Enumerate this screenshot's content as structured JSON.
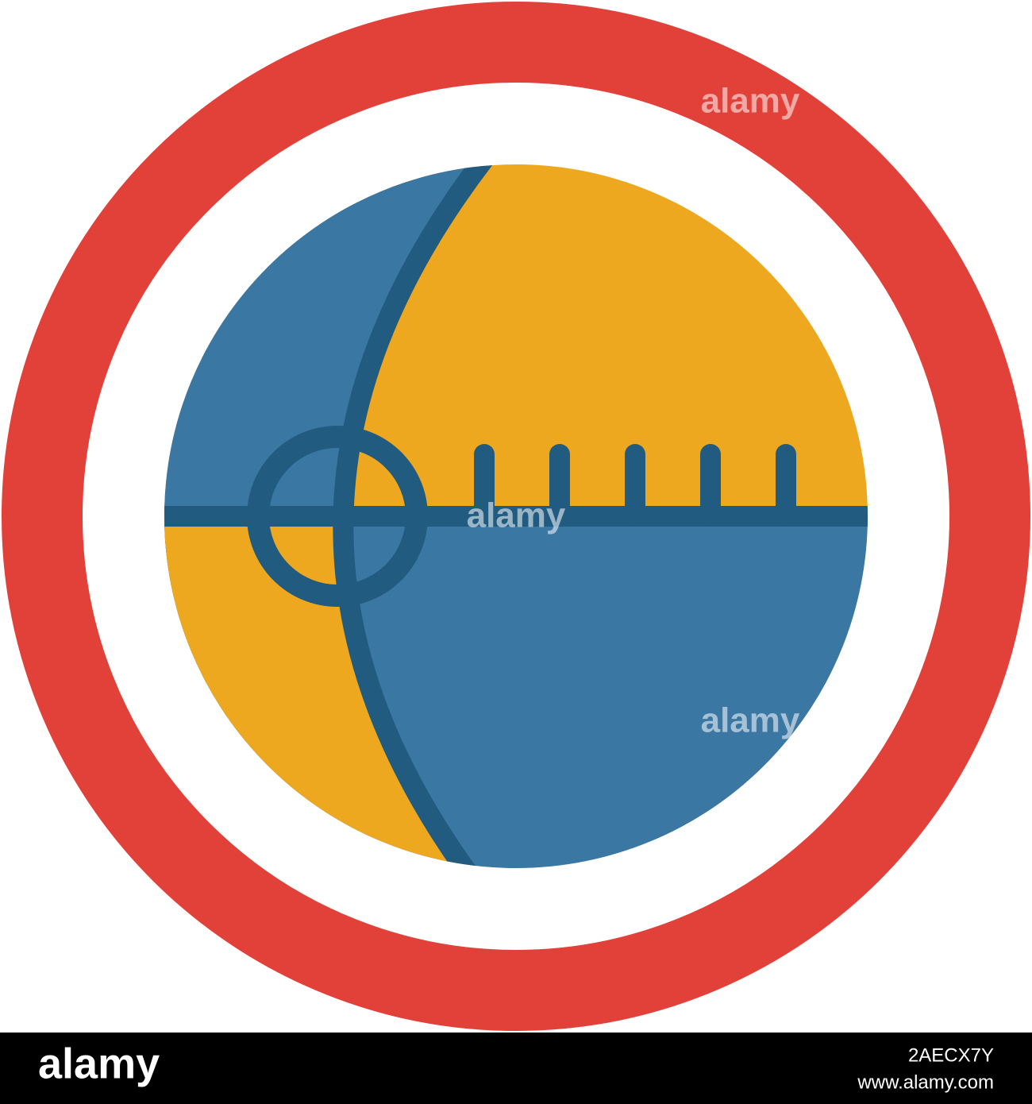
{
  "watermark": "alamy",
  "footer": {
    "logo": "alamy",
    "id": "2AECX7Y",
    "url": "www.alamy.com"
  }
}
